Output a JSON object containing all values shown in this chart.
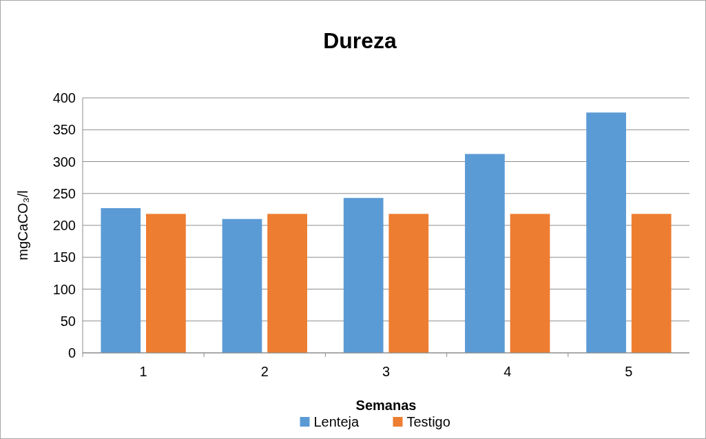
{
  "chart_data": {
    "type": "bar",
    "title": "Dureza",
    "xlabel": "Semanas",
    "ylabel": "mgCaCO₃/l",
    "categories": [
      "1",
      "2",
      "3",
      "4",
      "5"
    ],
    "series": [
      {
        "name": "Lenteja",
        "color": "#5b9bd5",
        "values": [
          227,
          210,
          243,
          312,
          377
        ]
      },
      {
        "name": "Testigo",
        "color": "#ed7d31",
        "values": [
          218,
          218,
          218,
          218,
          218
        ]
      }
    ],
    "ylim": [
      0,
      400
    ],
    "yticks": [
      0,
      50,
      100,
      150,
      200,
      250,
      300,
      350,
      400
    ],
    "grid": "y",
    "legend": "bottom"
  }
}
